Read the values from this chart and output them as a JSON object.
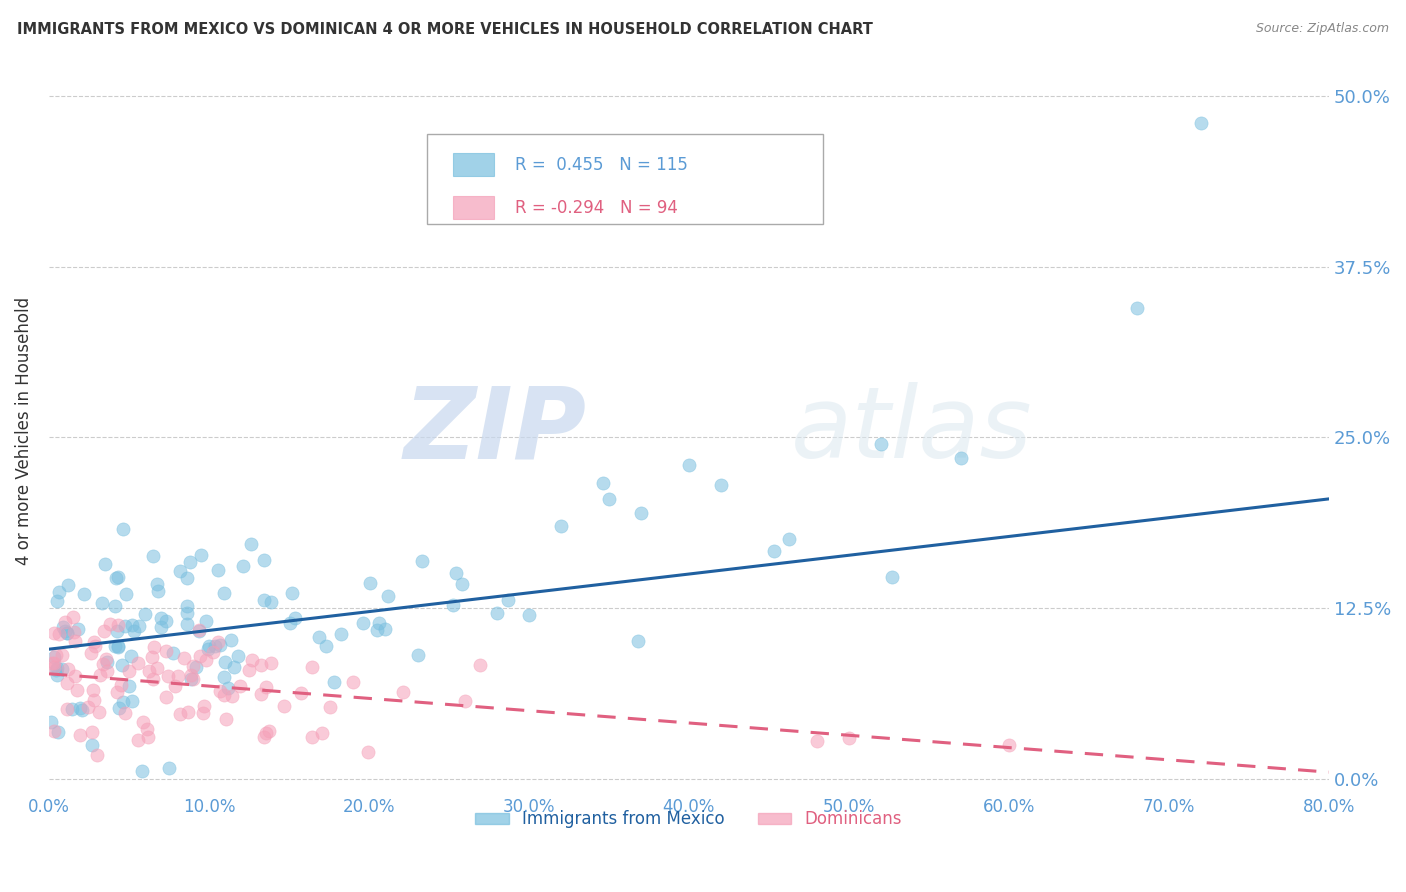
{
  "title": "IMMIGRANTS FROM MEXICO VS DOMINICAN 4 OR MORE VEHICLES IN HOUSEHOLD CORRELATION CHART",
  "source": "Source: ZipAtlas.com",
  "ylabel_label": "4 or more Vehicles in Household",
  "xlim": [
    0.0,
    0.8
  ],
  "ylim": [
    -0.01,
    0.52
  ],
  "yticks": [
    0.0,
    0.125,
    0.25,
    0.375,
    0.5
  ],
  "xticks": [
    0.0,
    0.1,
    0.2,
    0.3,
    0.4,
    0.5,
    0.6,
    0.7,
    0.8
  ],
  "mexico_R": 0.455,
  "mexico_N": 115,
  "dominican_R": -0.294,
  "dominican_N": 94,
  "mexico_color": "#7abfdf",
  "dominican_color": "#f5a0b8",
  "mexico_line_color": "#2060a0",
  "dominican_line_color": "#e06080",
  "legend_label_mexico": "Immigrants from Mexico",
  "legend_label_dominican": "Dominicans",
  "watermark_zip": "ZIP",
  "watermark_atlas": "atlas",
  "background_color": "#ffffff",
  "grid_color": "#cccccc",
  "title_color": "#333333",
  "tick_color": "#5b9bd5",
  "legend_R_color_mexico": "#5b9bd5",
  "legend_R_color_dominican": "#e06080",
  "mexico_line_y0": 0.095,
  "mexico_line_y1": 0.205,
  "dominican_line_y0": 0.077,
  "dominican_line_y1": 0.005
}
